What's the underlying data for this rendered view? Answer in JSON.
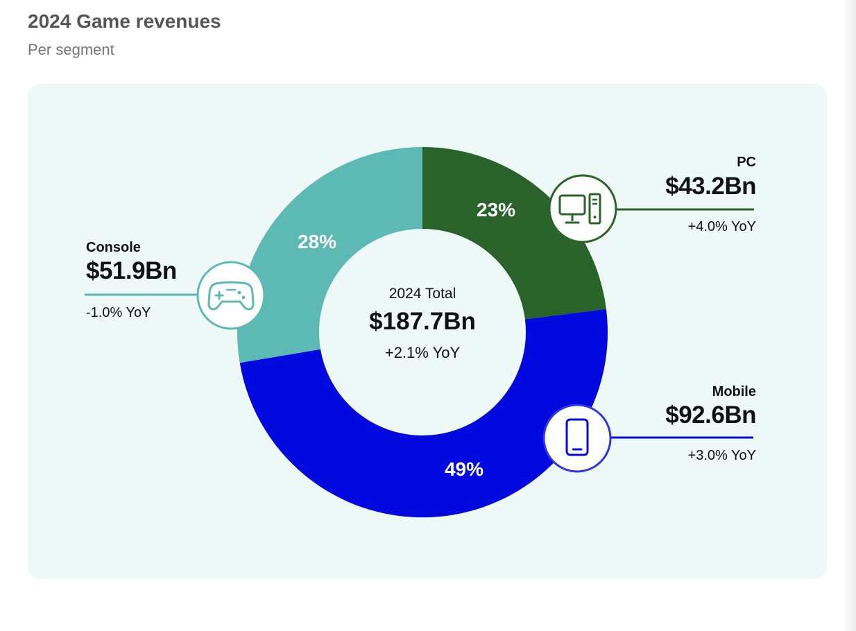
{
  "header": {
    "title": "2024 Game revenues",
    "subtitle": "Per segment"
  },
  "chart_data": {
    "type": "pie",
    "variant": "donut",
    "title": "2024 Game revenues",
    "subtitle": "Per segment",
    "center": {
      "label": "2024 Total",
      "value": "$187.7Bn",
      "yoy": "+2.1% YoY"
    },
    "segments": [
      {
        "name": "PC",
        "value": 43.2,
        "value_label": "$43.2Bn",
        "share_label": "23%",
        "yoy": "+4.0% YoY",
        "color": "#29632a",
        "icon": "desktop-computer-icon"
      },
      {
        "name": "Mobile",
        "value": 92.6,
        "value_label": "$92.6Bn",
        "share_label": "49%",
        "yoy": "+3.0% YoY",
        "color": "#0209de",
        "icon": "smartphone-icon"
      },
      {
        "name": "Console",
        "value": 51.9,
        "value_label": "$51.9Bn",
        "share_label": "28%",
        "yoy": "-1.0% YoY",
        "color": "#5cb9b3",
        "icon": "gamepad-icon"
      }
    ]
  }
}
